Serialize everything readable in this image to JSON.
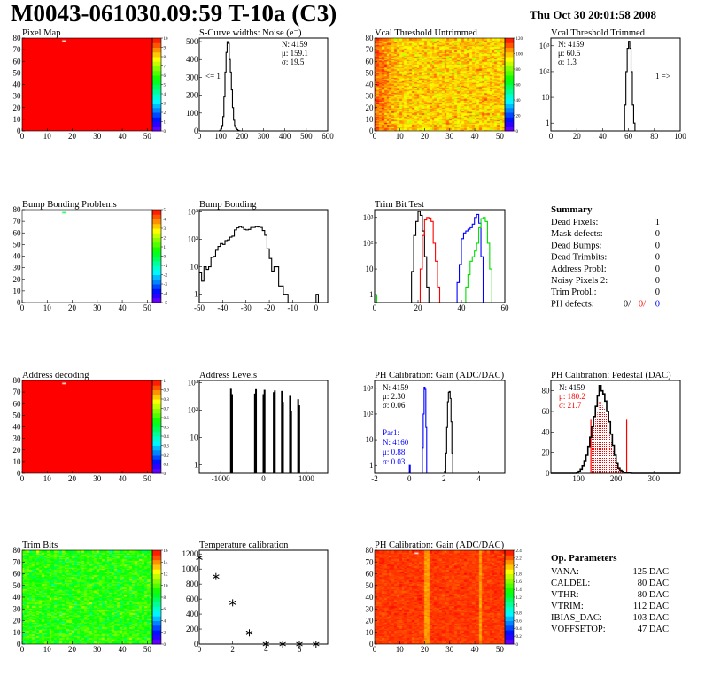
{
  "header": {
    "title": "M0043-061030.09:59 T-10a (C3)",
    "datetime": "Thu Oct 30 20:01:58 2008"
  },
  "chart_data": [
    {
      "id": "pixel_map",
      "type": "heatmap",
      "title": "Pixel Map",
      "xlim": [
        0,
        52
      ],
      "ylim": [
        0,
        80
      ],
      "xticks": [
        0,
        10,
        20,
        30,
        40,
        50
      ],
      "yticks": [
        0,
        10,
        20,
        30,
        40,
        50,
        60,
        70,
        80
      ],
      "zlim": [
        0,
        10
      ],
      "zticks": [
        0,
        1,
        2,
        3,
        4,
        5,
        6,
        7,
        8,
        9,
        10
      ],
      "fill_value": 10,
      "outliers": [
        {
          "x": 16,
          "y": 77,
          "value": 0
        }
      ]
    },
    {
      "id": "scurve",
      "type": "bar",
      "title": "S-Curve widths: Noise (e⁻)",
      "xlim": [
        0,
        600
      ],
      "ylim": [
        0,
        520
      ],
      "xticks": [
        0,
        100,
        200,
        300,
        400,
        500,
        600
      ],
      "yticks": [
        0,
        100,
        200,
        300,
        400,
        500
      ],
      "series": [
        {
          "name": "noise",
          "color": "#000000",
          "bin_start": 95,
          "bin_width": 5,
          "values": [
            3,
            10,
            30,
            80,
            190,
            330,
            440,
            500,
            490,
            400,
            330,
            230,
            130,
            60,
            30,
            15,
            8,
            3,
            1
          ]
        }
      ],
      "stats": [
        {
          "text": "N: 4159",
          "color": "#000000"
        },
        {
          "text": "μ: 159.1",
          "color": "#000000"
        },
        {
          "text": "σ: 19.5",
          "color": "#000000"
        }
      ],
      "annotations": [
        "<= 1"
      ]
    },
    {
      "id": "vcal_map",
      "type": "heatmap",
      "title": "Vcal Threshold Untrimmed",
      "xlim": [
        0,
        52
      ],
      "ylim": [
        0,
        80
      ],
      "xticks": [
        0,
        10,
        20,
        30,
        40,
        50
      ],
      "yticks": [
        0,
        10,
        20,
        30,
        40,
        50,
        60,
        70,
        80
      ],
      "zlim": [
        0,
        120
      ],
      "zticks": [
        0,
        20,
        40,
        60,
        80,
        100,
        120
      ],
      "mean_value": 98,
      "spread": 8,
      "outliers": []
    },
    {
      "id": "vcal_trim",
      "type": "bar",
      "title": "Vcal Threshold Trimmed",
      "xlim": [
        0,
        100
      ],
      "ylim": [
        0.5,
        2000
      ],
      "yscale": "log",
      "xticks": [
        0,
        20,
        40,
        60,
        80,
        100
      ],
      "yticks": [
        1,
        10,
        100,
        1000
      ],
      "ytick_labels": [
        "1",
        "10",
        "10²",
        "10³"
      ],
      "series": [
        {
          "name": "threshold",
          "color": "#000000",
          "bin_start": 57,
          "bin_width": 1,
          "values": [
            5,
            100,
            800,
            1500,
            800,
            100,
            5,
            1
          ]
        }
      ],
      "stats": [
        {
          "text": "N: 4159",
          "color": "#000000"
        },
        {
          "text": "μ: 60.5",
          "color": "#000000"
        },
        {
          "text": "σ:  1.3",
          "color": "#000000"
        }
      ],
      "annotations": [
        "1 =>"
      ]
    },
    {
      "id": "bump_map",
      "type": "heatmap",
      "title": "Bump Bonding Problems",
      "xlim": [
        0,
        52
      ],
      "ylim": [
        0,
        80
      ],
      "xticks": [
        0,
        10,
        20,
        30,
        40,
        50
      ],
      "yticks": [
        0,
        10,
        20,
        30,
        40,
        50,
        60,
        70,
        80
      ],
      "zlim": [
        -5,
        5
      ],
      "zticks": [
        -5,
        -4,
        -3,
        -2,
        -1,
        0,
        1,
        2,
        3,
        4,
        5
      ],
      "fill_value": null,
      "outliers": [
        {
          "x": 16,
          "y": 77,
          "value": 0
        }
      ]
    },
    {
      "id": "bump",
      "type": "bar",
      "title": "Bump Bonding",
      "xlim": [
        -50,
        5
      ],
      "ylim": [
        0.5,
        1200
      ],
      "yscale": "log",
      "xticks": [
        -50,
        -40,
        -30,
        -20,
        -10,
        0
      ],
      "yticks": [
        1,
        10,
        100,
        1000
      ],
      "ytick_labels": [
        "1",
        "10",
        "10²",
        "10³"
      ],
      "series": [
        {
          "name": "bump",
          "color": "#000000",
          "bin_start": -50,
          "bin_width": 1,
          "values": [
            6,
            3,
            10,
            8,
            10,
            22,
            24,
            40,
            55,
            70,
            65,
            90,
            95,
            120,
            130,
            220,
            260,
            290,
            270,
            230,
            220,
            230,
            270,
            270,
            290,
            280,
            270,
            210,
            140,
            45,
            20,
            7,
            10,
            10,
            2,
            2,
            1,
            1,
            0,
            0,
            0,
            0,
            0,
            0,
            0,
            0,
            0,
            0,
            0,
            0,
            1
          ]
        }
      ],
      "stats": [],
      "annotations": []
    },
    {
      "id": "trimbit",
      "type": "bar",
      "title": "Trim Bit Test",
      "xlim": [
        0,
        60
      ],
      "ylim": [
        0.5,
        2000
      ],
      "yscale": "log",
      "xticks": [
        0,
        20,
        40,
        60
      ],
      "yticks": [
        1,
        10,
        100,
        1000
      ],
      "ytick_labels": [
        "1",
        "10",
        "10²",
        "10³"
      ],
      "series": [
        {
          "name": "trim bit 1",
          "color": "#000000",
          "bin_start": 17,
          "bin_width": 1,
          "values": [
            8,
            200,
            700,
            1700,
            1200,
            300,
            30,
            2
          ]
        },
        {
          "name": "trim bit 2",
          "color": "#ff0000",
          "bin_start": 20,
          "bin_width": 1,
          "values": [
            0.5,
            10,
            200,
            800,
            1000,
            950,
            700,
            100,
            20,
            2
          ]
        },
        {
          "name": "trim bit 3",
          "color": "#0000ff",
          "bin_start": 38,
          "bin_width": 1,
          "values": [
            3,
            15,
            150,
            250,
            300,
            350,
            400,
            550,
            1000,
            1300,
            600,
            30
          ]
        },
        {
          "name": "trim bit 4",
          "color": "#00dd00",
          "bin_start": 0,
          "bin_width": 1,
          "values": [
            1,
            0,
            0,
            0,
            0,
            0,
            0,
            0,
            0,
            0,
            0,
            0,
            0,
            0,
            0,
            0,
            0,
            0,
            0,
            0,
            0,
            0,
            0,
            0,
            0,
            0,
            0,
            0,
            0,
            0,
            0,
            0,
            0,
            0,
            0,
            0,
            0,
            0,
            0,
            0,
            0,
            0,
            2,
            6,
            20,
            30,
            50,
            100,
            400,
            900,
            1000,
            700,
            100,
            10
          ]
        }
      ],
      "stats": [],
      "annotations": []
    },
    {
      "id": "addr_map",
      "type": "heatmap",
      "title": "Address decoding",
      "xlim": [
        0,
        52
      ],
      "ylim": [
        0,
        80
      ],
      "xticks": [
        0,
        10,
        20,
        30,
        40,
        50
      ],
      "yticks": [
        0,
        10,
        20,
        30,
        40,
        50,
        60,
        70,
        80
      ],
      "zlim": [
        0,
        1
      ],
      "zticks": [
        0,
        0.1,
        0.2,
        0.3,
        0.4,
        0.5,
        0.6,
        0.7,
        0.8,
        0.9,
        1
      ],
      "fill_value": 1,
      "outliers": [
        {
          "x": 16,
          "y": 77,
          "value": 0
        }
      ]
    },
    {
      "id": "addr",
      "type": "levels",
      "title": "Address Levels",
      "xlim": [
        -1500,
        1500
      ],
      "ylim": [
        0.5,
        1200
      ],
      "yscale": "log",
      "xticks": [
        -1000,
        0,
        1000
      ],
      "yticks": [
        1,
        10,
        100,
        1000
      ],
      "ytick_labels": [
        "1",
        "10",
        "10²",
        "10³"
      ],
      "bars": [
        {
          "x": -760,
          "value": 600
        },
        {
          "x": -735,
          "value": 380
        },
        {
          "x": -200,
          "value": 400
        },
        {
          "x": -175,
          "value": 580
        },
        {
          "x": 0,
          "value": 380
        },
        {
          "x": 25,
          "value": 550
        },
        {
          "x": 240,
          "value": 450
        },
        {
          "x": 265,
          "value": 520
        },
        {
          "x": 430,
          "value": 500
        },
        {
          "x": 455,
          "value": 200
        },
        {
          "x": 620,
          "value": 330
        },
        {
          "x": 645,
          "value": 95
        },
        {
          "x": 810,
          "value": 250
        },
        {
          "x": 835,
          "value": 150
        }
      ],
      "stats": [],
      "annotations": []
    },
    {
      "id": "phgain",
      "type": "bar",
      "title": "PH Calibration: Gain (ADC/DAC)",
      "xlim": [
        -2,
        5.5
      ],
      "ylim": [
        0.5,
        2000
      ],
      "yscale": "log",
      "xticks": [
        -2,
        0,
        2,
        4
      ],
      "yticks": [
        1,
        10,
        100,
        1000
      ],
      "ytick_labels": [
        "1",
        "10",
        "10²",
        "10³"
      ],
      "series": [
        {
          "name": "Gain",
          "color": "#000000",
          "bin_start": 2.05,
          "bin_width": 0.05,
          "values": [
            0.5,
            3,
            30,
            300,
            700,
            750,
            400,
            50,
            3,
            0.5
          ]
        },
        {
          "name": "Par1",
          "color": "#0000ff",
          "bin_start": 0,
          "bin_width": 0.05,
          "values": [
            1,
            0,
            0,
            0,
            0,
            0,
            0,
            0,
            0,
            0,
            0,
            0,
            0,
            0,
            0,
            5,
            100,
            1100,
            900,
            30
          ]
        }
      ],
      "stats": [
        {
          "text": "N: 4159",
          "color": "#000000"
        },
        {
          "text": "μ: 2.30",
          "color": "#000000"
        },
        {
          "text": "σ: 0.06",
          "color": "#000000"
        }
      ],
      "stats2": [
        {
          "text": "Par1:",
          "color": "#0000ff"
        },
        {
          "text": "N: 4160",
          "color": "#0000ff"
        },
        {
          "text": "μ: 0.88",
          "color": "#0000ff"
        },
        {
          "text": "σ: 0.03",
          "color": "#0000ff"
        }
      ],
      "annotations": []
    },
    {
      "id": "ped",
      "type": "bar",
      "title": "PH Calibration: Pedestal (DAC)",
      "xlim": [
        27,
        370
      ],
      "ylim": [
        0,
        90
      ],
      "xticks": [
        100,
        200,
        300
      ],
      "yticks": [
        0,
        20,
        40,
        60,
        80
      ],
      "series": [
        {
          "name": "pedestal",
          "color": "#000000",
          "bin_start": 95,
          "bin_width": 5,
          "values": [
            1,
            2,
            4,
            7,
            12,
            18,
            26,
            35,
            45,
            55,
            65,
            75,
            85,
            80,
            77,
            70,
            60,
            50,
            38,
            27,
            18,
            10,
            5,
            3,
            2,
            1,
            0.5,
            0.5,
            0.5,
            0,
            0,
            0
          ]
        }
      ],
      "cuts": [
        133,
        228
      ],
      "cut_height": 52,
      "cut_color": "#ff0000",
      "stats": [
        {
          "text": "N: 4159",
          "color": "#000000"
        },
        {
          "text": "μ: 180.2",
          "color": "#ff0000"
        },
        {
          "text": "σ: 21.7",
          "color": "#ff0000"
        }
      ],
      "annotations": []
    },
    {
      "id": "trimbits_map",
      "type": "heatmap",
      "title": "Trim Bits",
      "xlim": [
        0,
        52
      ],
      "ylim": [
        0,
        80
      ],
      "xticks": [
        0,
        10,
        20,
        30,
        40,
        50
      ],
      "yticks": [
        0,
        10,
        20,
        30,
        40,
        50,
        60,
        70,
        80
      ],
      "zlim": [
        0,
        16
      ],
      "zticks": [
        0,
        2,
        4,
        6,
        8,
        10,
        12,
        14,
        16
      ],
      "mean_value": 9.3,
      "spread": 1.4,
      "outliers": []
    },
    {
      "id": "temp",
      "type": "scatter",
      "title": "Temperature calibration",
      "xlim": [
        0,
        7.7
      ],
      "ylim": [
        0,
        1250
      ],
      "xticks": [
        0,
        2,
        4,
        6
      ],
      "yticks": [
        0,
        200,
        400,
        600,
        800,
        1000,
        1200
      ],
      "x": [
        0,
        1,
        2,
        3,
        4,
        5,
        6,
        7
      ],
      "y": [
        1150,
        900,
        550,
        150,
        0,
        0,
        0,
        0
      ],
      "stats": [],
      "annotations": []
    },
    {
      "id": "phgain_map",
      "type": "heatmap",
      "title": "PH Calibration: Gain (ADC/DAC)",
      "xlim": [
        0,
        52
      ],
      "ylim": [
        0,
        80
      ],
      "xticks": [
        0,
        10,
        20,
        30,
        40,
        50
      ],
      "yticks": [
        0,
        10,
        20,
        30,
        40,
        50,
        60,
        70,
        80
      ],
      "zlim": [
        0,
        2.4
      ],
      "zticks": [
        0,
        0.2,
        0.4,
        0.6,
        0.8,
        1,
        1.2,
        1.4,
        1.6,
        1.8,
        2,
        2.2,
        2.4
      ],
      "mean_value": 2.28,
      "spread": 0.06,
      "low_columns": [
        20,
        21,
        42
      ],
      "outliers": [
        {
          "x": 16,
          "y": 77,
          "value": 0
        }
      ]
    }
  ],
  "summary": {
    "title": "Summary",
    "rows": [
      {
        "label": "Dead Pixels:",
        "value": "1"
      },
      {
        "label": "Mask defects:",
        "value": "0"
      },
      {
        "label": "Dead Bumps:",
        "value": "0"
      },
      {
        "label": "Dead Trimbits:",
        "value": "0"
      },
      {
        "label": "Address Probl:",
        "value": "0"
      },
      {
        "label": "Noisy Pixels 2:",
        "value": "0"
      },
      {
        "label": "Trim Probl.:",
        "value": "0"
      }
    ],
    "ph_defects": {
      "label": "PH defects:",
      "values": [
        {
          "text": "0/",
          "color": "#000000"
        },
        {
          "text": "0/",
          "color": "#ff0000"
        },
        {
          "text": "0",
          "color": "#0000ff"
        }
      ]
    }
  },
  "op_parameters": {
    "title": "Op. Parameters",
    "rows": [
      {
        "label": "VANA:",
        "value": "125 DAC"
      },
      {
        "label": "CALDEL:",
        "value": "80 DAC"
      },
      {
        "label": "VTHR:",
        "value": "80 DAC"
      },
      {
        "label": "VTRIM:",
        "value": "112 DAC"
      },
      {
        "label": "IBIAS_DAC:",
        "value": "103 DAC"
      },
      {
        "label": "VOFFSETOP:",
        "value": "47 DAC"
      }
    ]
  }
}
